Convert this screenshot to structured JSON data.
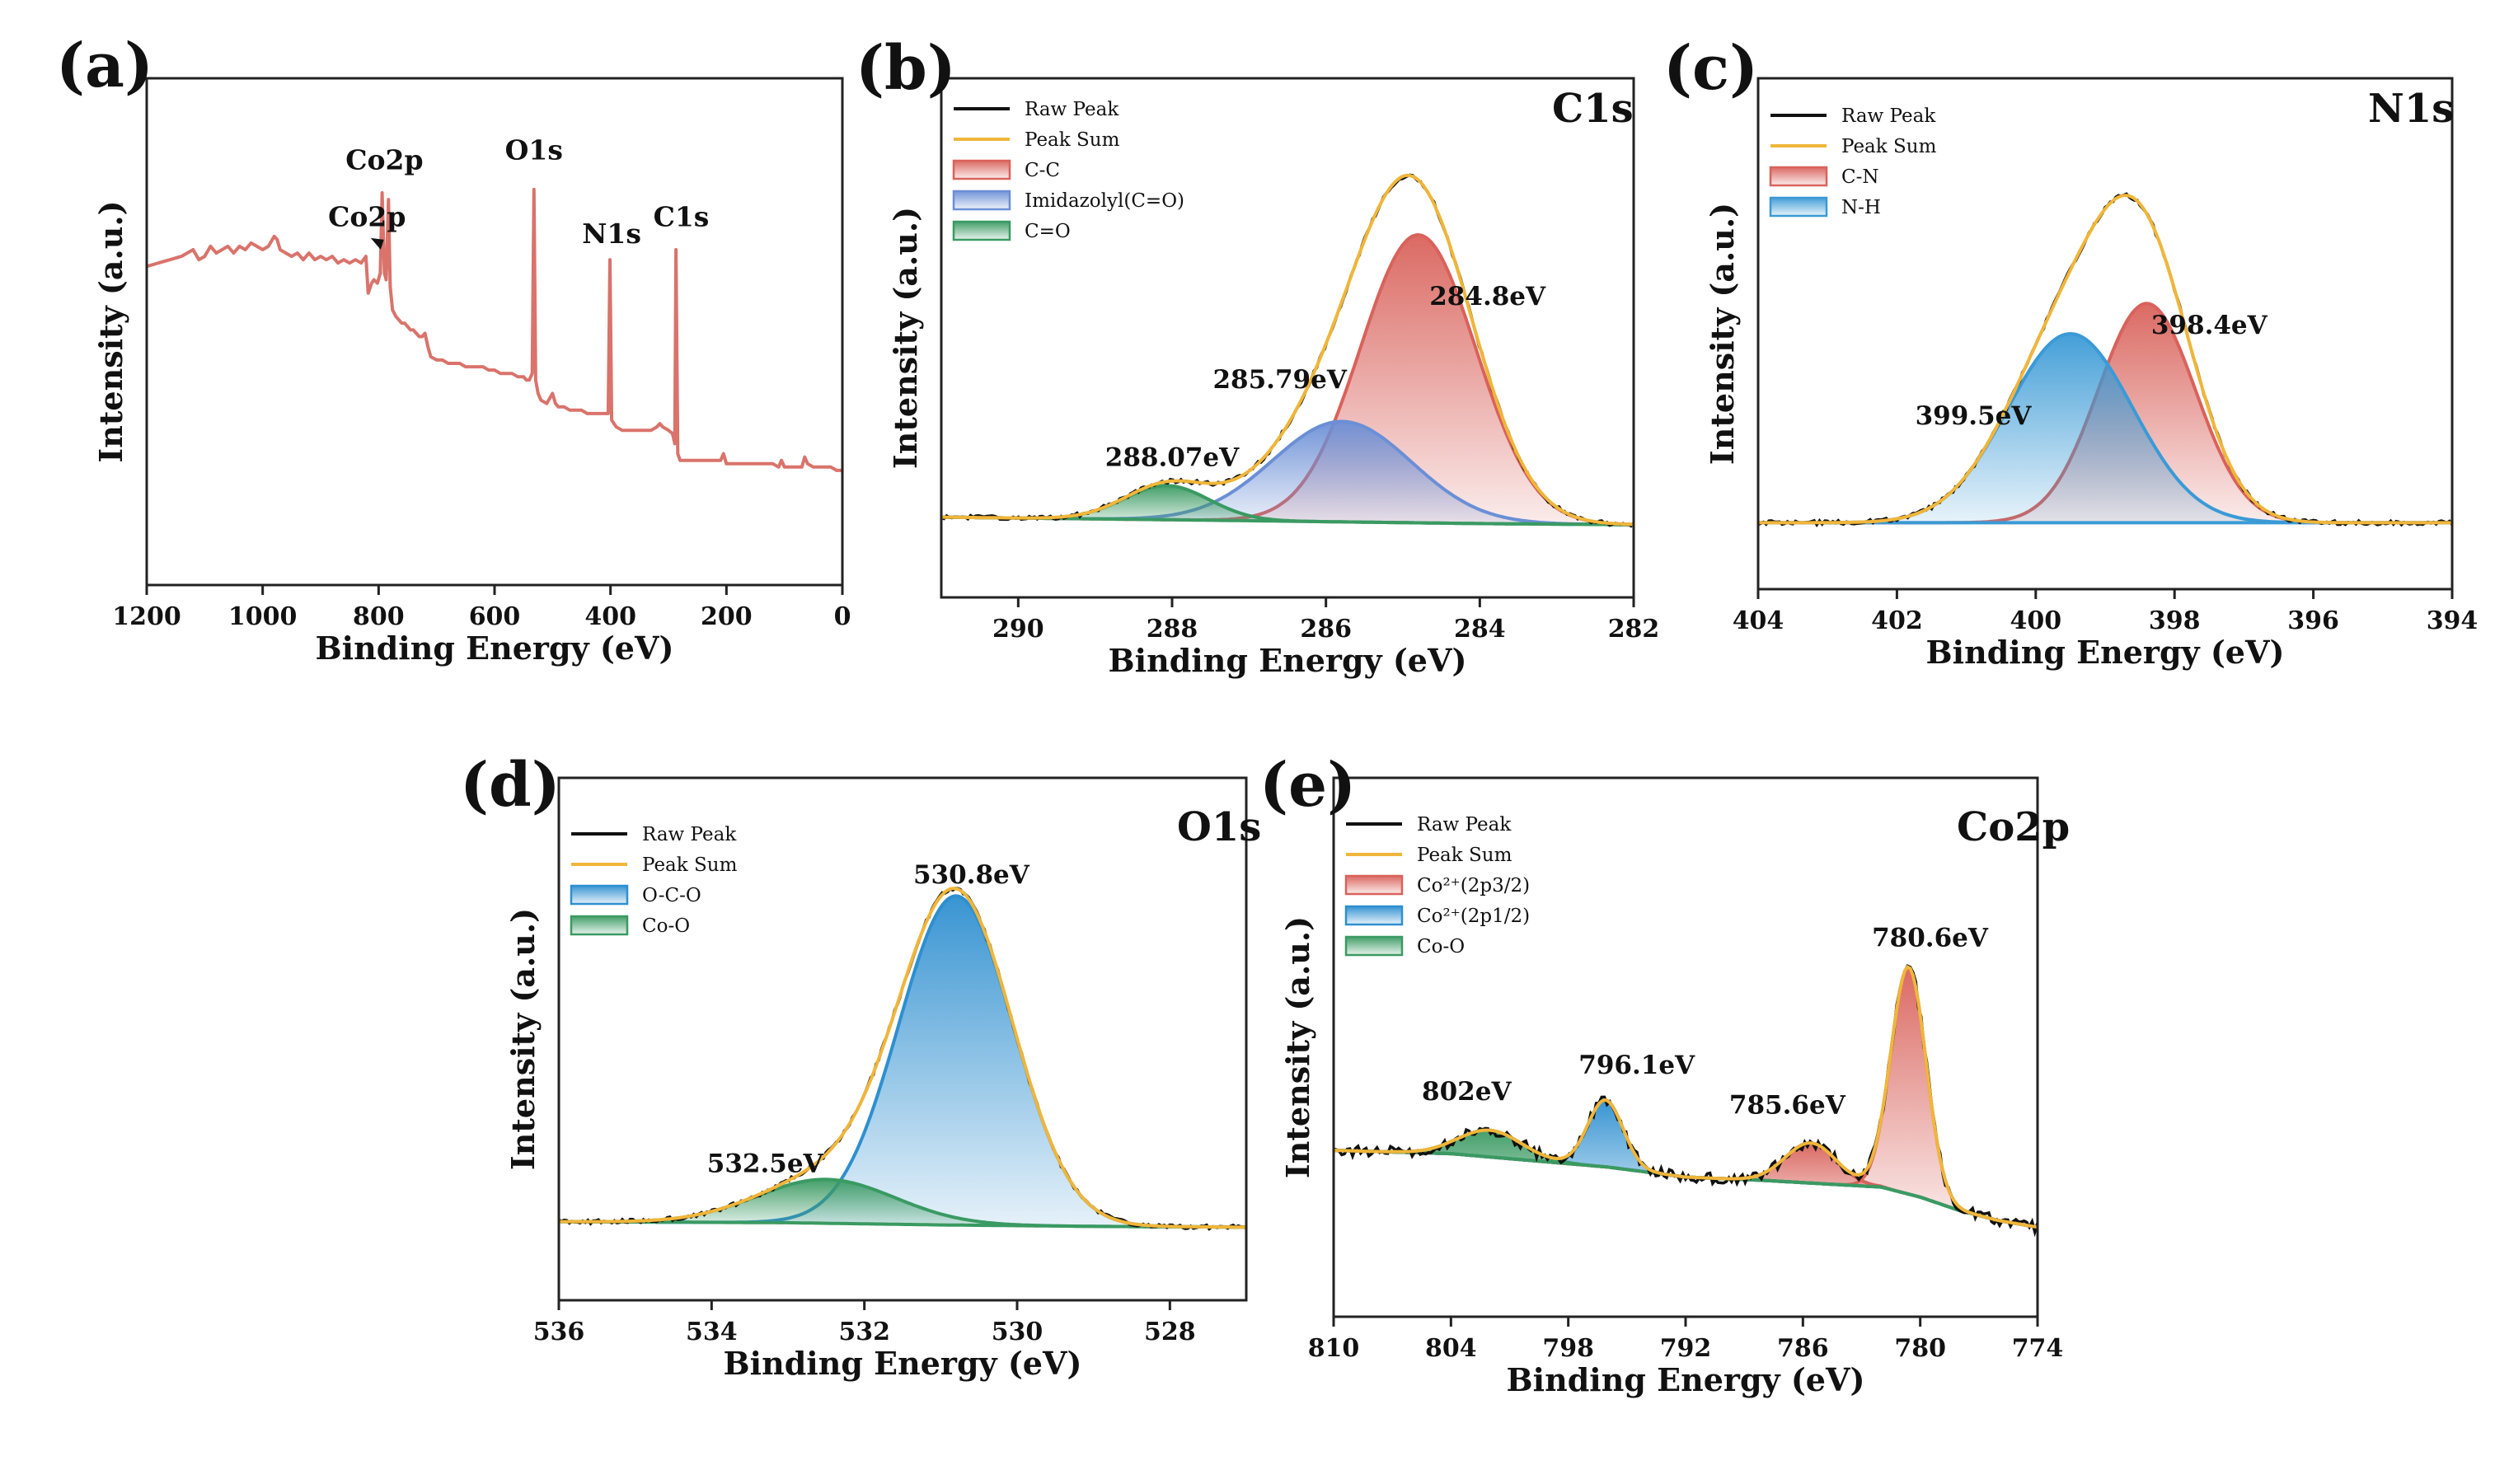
{
  "chart_data": [
    {
      "panel": "(a)",
      "type": "line",
      "title": "",
      "xlabel": "Binding Energy (eV)",
      "ylabel": "Intensity (a.u.)",
      "xlim": [
        1200,
        0
      ],
      "xticks": [
        1200,
        1000,
        800,
        600,
        400,
        200,
        0
      ],
      "ylim": [
        0,
        100
      ],
      "colors": {
        "survey": "#d9736b"
      },
      "survey": [
        [
          1200,
          68
        ],
        [
          1180,
          69
        ],
        [
          1160,
          70
        ],
        [
          1140,
          71
        ],
        [
          1120,
          73
        ],
        [
          1110,
          70
        ],
        [
          1100,
          71
        ],
        [
          1090,
          74
        ],
        [
          1080,
          72
        ],
        [
          1070,
          73
        ],
        [
          1060,
          74
        ],
        [
          1050,
          72
        ],
        [
          1040,
          74
        ],
        [
          1030,
          73
        ],
        [
          1020,
          75
        ],
        [
          1010,
          74
        ],
        [
          1000,
          73
        ],
        [
          990,
          74
        ],
        [
          980,
          77
        ],
        [
          975,
          76
        ],
        [
          970,
          73
        ],
        [
          960,
          72
        ],
        [
          950,
          71
        ],
        [
          940,
          72
        ],
        [
          930,
          70
        ],
        [
          920,
          72
        ],
        [
          910,
          70
        ],
        [
          900,
          71
        ],
        [
          890,
          70
        ],
        [
          880,
          71
        ],
        [
          870,
          69
        ],
        [
          860,
          70
        ],
        [
          850,
          69
        ],
        [
          840,
          70
        ],
        [
          830,
          69
        ],
        [
          822,
          71
        ],
        [
          818,
          60
        ],
        [
          812,
          63
        ],
        [
          808,
          64
        ],
        [
          802,
          63
        ],
        [
          797,
          66
        ],
        [
          794,
          90
        ],
        [
          790,
          66
        ],
        [
          787,
          64
        ],
        [
          783,
          88
        ],
        [
          780,
          62
        ],
        [
          776,
          55
        ],
        [
          770,
          53
        ],
        [
          765,
          52
        ],
        [
          760,
          51
        ],
        [
          755,
          51
        ],
        [
          750,
          50
        ],
        [
          745,
          49
        ],
        [
          740,
          49
        ],
        [
          735,
          48
        ],
        [
          730,
          47
        ],
        [
          725,
          47
        ],
        [
          720,
          48
        ],
        [
          715,
          44
        ],
        [
          710,
          41
        ],
        [
          700,
          40
        ],
        [
          690,
          40
        ],
        [
          680,
          39
        ],
        [
          670,
          39
        ],
        [
          660,
          39
        ],
        [
          650,
          38
        ],
        [
          640,
          38
        ],
        [
          630,
          38
        ],
        [
          620,
          38
        ],
        [
          610,
          37
        ],
        [
          600,
          37
        ],
        [
          590,
          36
        ],
        [
          580,
          36
        ],
        [
          570,
          36
        ],
        [
          560,
          35
        ],
        [
          550,
          35
        ],
        [
          545,
          34
        ],
        [
          540,
          34
        ],
        [
          535,
          36
        ],
        [
          532,
          91
        ],
        [
          529,
          34
        ],
        [
          525,
          30
        ],
        [
          520,
          28
        ],
        [
          510,
          27
        ],
        [
          500,
          30
        ],
        [
          495,
          27
        ],
        [
          490,
          26
        ],
        [
          480,
          26
        ],
        [
          470,
          25
        ],
        [
          460,
          25
        ],
        [
          450,
          25
        ],
        [
          440,
          24
        ],
        [
          430,
          24
        ],
        [
          420,
          24
        ],
        [
          410,
          24
        ],
        [
          404,
          24
        ],
        [
          401,
          70
        ],
        [
          398,
          22
        ],
        [
          390,
          20
        ],
        [
          380,
          19
        ],
        [
          370,
          19
        ],
        [
          360,
          19
        ],
        [
          350,
          19
        ],
        [
          340,
          19
        ],
        [
          330,
          19
        ],
        [
          320,
          20
        ],
        [
          315,
          21
        ],
        [
          310,
          20
        ],
        [
          300,
          19
        ],
        [
          293,
          18
        ],
        [
          289,
          15
        ],
        [
          287,
          73
        ],
        [
          284,
          12
        ],
        [
          280,
          10
        ],
        [
          270,
          10
        ],
        [
          260,
          10
        ],
        [
          250,
          10
        ],
        [
          240,
          10
        ],
        [
          230,
          10
        ],
        [
          220,
          10
        ],
        [
          210,
          10
        ],
        [
          205,
          12
        ],
        [
          200,
          9
        ],
        [
          190,
          9
        ],
        [
          180,
          9
        ],
        [
          170,
          9
        ],
        [
          160,
          9
        ],
        [
          150,
          9
        ],
        [
          140,
          9
        ],
        [
          130,
          9
        ],
        [
          120,
          9
        ],
        [
          110,
          8
        ],
        [
          105,
          10
        ],
        [
          100,
          8
        ],
        [
          90,
          8
        ],
        [
          80,
          8
        ],
        [
          70,
          8
        ],
        [
          65,
          11
        ],
        [
          60,
          9
        ],
        [
          50,
          8
        ],
        [
          40,
          8
        ],
        [
          30,
          8
        ],
        [
          20,
          8
        ],
        [
          10,
          7
        ],
        [
          0,
          7
        ]
      ],
      "annotations": [
        {
          "text": "Co2p",
          "x": 790,
          "y": 97
        },
        {
          "text": "Co2p",
          "x": 820,
          "y": 80
        },
        {
          "text": "O1s",
          "x": 532,
          "y": 100
        },
        {
          "text": "N1s",
          "x": 398,
          "y": 75
        },
        {
          "text": "C1s",
          "x": 278,
          "y": 80
        }
      ]
    },
    {
      "panel": "(b)",
      "type": "area",
      "title": "C1s",
      "xlabel": "Binding Energy (eV)",
      "ylabel": "Intensity (a.u.)",
      "xlim": [
        291,
        282
      ],
      "xticks": [
        290,
        288,
        286,
        284,
        282
      ],
      "ylim": [
        0,
        100
      ],
      "legend": [
        "Raw Peak",
        "Peak Sum",
        "C-C",
        "Imidazolyl(C=O)",
        "C=O"
      ],
      "colors": {
        "raw": "#111111",
        "sum": "#f0b63a",
        "C-C": "#d9625b",
        "Imidazolyl(C=O)": "#6b8fd6",
        "C=O": "#3a9a62"
      },
      "baseline": [
        [
          291,
          2
        ],
        [
          288,
          1.3
        ],
        [
          286,
          0.8
        ],
        [
          284,
          0.3
        ],
        [
          282,
          0
        ]
      ],
      "series": [
        {
          "name": "C-C",
          "center": 284.8,
          "amplitude": 76,
          "sigma": 0.75
        },
        {
          "name": "Imidazolyl(C=O)",
          "center": 285.79,
          "amplitude": 26.5,
          "sigma": 0.9
        },
        {
          "name": "C=O",
          "center": 288.07,
          "amplitude": 9,
          "sigma": 0.55
        }
      ],
      "peak_labels": [
        {
          "text": "284.8eV",
          "x": 283.9,
          "y": 58
        },
        {
          "text": "285.79eV",
          "x": 286.6,
          "y": 36
        },
        {
          "text": "288.07eV",
          "x": 288.0,
          "y": 15.5
        }
      ]
    },
    {
      "panel": "(c)",
      "type": "area",
      "title": "N1s",
      "xlabel": "Binding Energy (eV)",
      "ylabel": "Intensity (a.u.)",
      "xlim": [
        404,
        394
      ],
      "xticks": [
        404,
        402,
        400,
        398,
        396,
        394
      ],
      "ylim": [
        0,
        100
      ],
      "legend": [
        "Raw Peak",
        "Peak Sum",
        "C-N",
        "N-H"
      ],
      "colors": {
        "raw": "#111111",
        "sum": "#f0b63a",
        "C-N": "#d9625b",
        "N-H": "#3a9ad6"
      },
      "baseline": [
        [
          404,
          0
        ],
        [
          394,
          0
        ]
      ],
      "series": [
        {
          "name": "C-N",
          "center": 398.4,
          "amplitude": 58,
          "sigma": 0.7
        },
        {
          "name": "N-H",
          "center": 399.5,
          "amplitude": 50,
          "sigma": 0.9
        }
      ],
      "peak_labels": [
        {
          "text": "398.4eV",
          "x": 397.5,
          "y": 50
        },
        {
          "text": "399.5eV",
          "x": 400.9,
          "y": 26
        }
      ]
    },
    {
      "panel": "(d)",
      "type": "area",
      "title": "O1s",
      "xlabel": "Binding Energy (eV)",
      "ylabel": "Intensity (a.u.)",
      "xlim": [
        536,
        527
      ],
      "xticks": [
        536,
        534,
        532,
        530,
        528
      ],
      "ylim": [
        0,
        100
      ],
      "legend": [
        "Raw Peak",
        "Peak Sum",
        "O-C-O",
        "Co-O"
      ],
      "colors": {
        "raw": "#111111",
        "sum": "#f0b63a",
        "O-C-O": "#2e8fd0",
        "Co-O": "#3a9a62"
      },
      "baseline": [
        [
          536,
          1.5
        ],
        [
          533,
          1.2
        ],
        [
          531,
          0.6
        ],
        [
          529,
          0.2
        ],
        [
          527,
          0
        ]
      ],
      "series": [
        {
          "name": "O-C-O",
          "center": 530.8,
          "amplitude": 90,
          "sigma": 0.75
        },
        {
          "name": "Co-O",
          "center": 532.5,
          "amplitude": 12,
          "sigma": 0.9
        }
      ],
      "peak_labels": [
        {
          "text": "530.8eV",
          "x": 530.6,
          "y": 94
        },
        {
          "text": "532.5eV",
          "x": 533.3,
          "y": 15
        }
      ]
    },
    {
      "panel": "(e)",
      "type": "area",
      "title": "Co2p",
      "xlabel": "Binding Energy (eV)",
      "ylabel": "Intensity (a.u.)",
      "xlim": [
        810,
        774
      ],
      "xticks": [
        810,
        804,
        798,
        792,
        786,
        780,
        774
      ],
      "ylim": [
        0,
        100
      ],
      "legend": [
        "Raw Peak",
        "Peak Sum",
        "Co²⁺(2p3/2)",
        "Co²⁺(2p1/2)",
        "Co-O"
      ],
      "colors": {
        "raw": "#111111",
        "sum": "#f0b63a",
        "Co²⁺(2p3/2)": "#d9625b",
        "Co²⁺(2p1/2)": "#2e8fd0",
        "Co-O": "#3a9a62"
      },
      "baseline": [
        [
          810,
          24
        ],
        [
          804,
          23
        ],
        [
          800,
          21
        ],
        [
          796,
          19
        ],
        [
          792,
          16
        ],
        [
          788,
          15
        ],
        [
          785,
          14
        ],
        [
          782,
          13
        ],
        [
          780,
          10
        ],
        [
          778,
          6
        ],
        [
          776,
          3
        ],
        [
          774,
          1
        ]
      ],
      "series": [
        {
          "name": "Co²⁺(2p3/2) 780.6",
          "center": 780.6,
          "amplitude": 68,
          "sigma": 0.9
        },
        {
          "name": "Co²⁺(2p3/2) 785.6",
          "center": 785.6,
          "amplitude": 12,
          "sigma": 1.3
        },
        {
          "name": "Co²⁺(2p1/2)",
          "center": 796.1,
          "amplitude": 20,
          "sigma": 0.9
        },
        {
          "name": "Co-O",
          "center": 802.0,
          "amplitude": 8,
          "sigma": 1.6
        }
      ],
      "peak_labels": [
        {
          "text": "780.6eV",
          "x": 779.5,
          "y": 85
        },
        {
          "text": "785.6eV",
          "x": 786.8,
          "y": 35
        },
        {
          "text": "796.1eV",
          "x": 794.5,
          "y": 47
        },
        {
          "text": "802eV",
          "x": 803.2,
          "y": 39
        }
      ]
    }
  ]
}
